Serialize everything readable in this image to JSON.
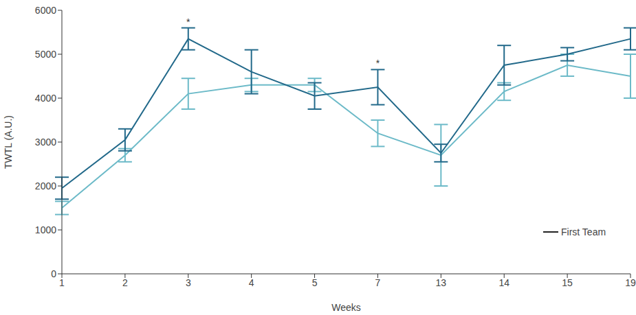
{
  "chart_data": {
    "type": "line",
    "x_label": "Weeks",
    "y_label": "TWTL (A.U.)",
    "categories": [
      "1",
      "2",
      "3",
      "4",
      "5",
      "7",
      "13",
      "14",
      "15",
      "19"
    ],
    "ylim": [
      0,
      6000
    ],
    "yticks": [
      0,
      1000,
      2000,
      3000,
      4000,
      5000,
      6000
    ],
    "grid": false,
    "legend": "lower right",
    "series": [
      {
        "name": "First Team",
        "color": "#22698a",
        "marker": "none",
        "values": [
          1950,
          3050,
          5350,
          4600,
          4050,
          4250,
          2750,
          4750,
          5000,
          5350
        ],
        "errors": [
          250,
          250,
          250,
          500,
          300,
          400,
          200,
          450,
          150,
          250
        ]
      },
      {
        "color": "#6cbac8",
        "marker": "none",
        "values": [
          1500,
          2700,
          4100,
          4300,
          4300,
          3200,
          2700,
          4150,
          4750,
          4500
        ],
        "errors": [
          150,
          150,
          350,
          150,
          150,
          300,
          700,
          200,
          250,
          500
        ]
      }
    ],
    "annotations": [
      {
        "category": "3",
        "series": 0,
        "text": "*"
      },
      {
        "category": "7",
        "series": 0,
        "text": "*"
      }
    ]
  }
}
